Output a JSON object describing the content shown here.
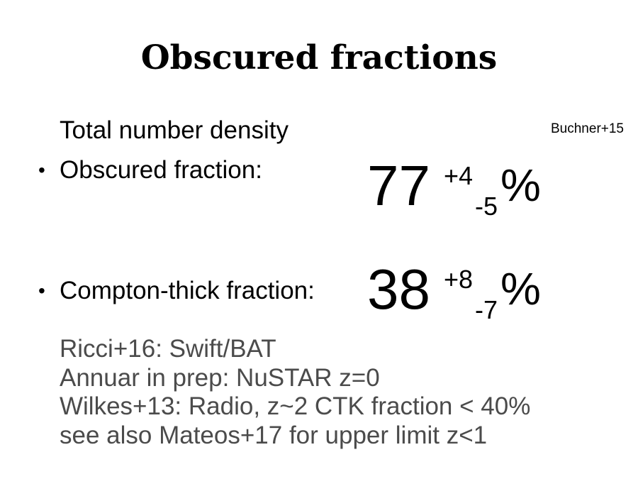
{
  "slide": {
    "title": "Obscured fractions",
    "citation": "Buchner+15",
    "items": [
      {
        "label": "Total number density",
        "bullet": ""
      },
      {
        "label": "Obscured fraction:",
        "bullet": "•",
        "value": "77",
        "error_plus": "+4",
        "error_minus": "-5",
        "unit": "%"
      },
      {
        "label": "Compton-thick fraction:",
        "bullet": "•",
        "value": "38",
        "error_plus": "+8",
        "error_minus": "-7",
        "unit": "%"
      }
    ],
    "references": [
      "Ricci+16: Swift/BAT",
      "Annuar in prep: NuSTAR z=0",
      "Wilkes+13: Radio, z~2 CTK fraction < 40%",
      "see also Mateos+17 for upper limit z<1"
    ]
  }
}
